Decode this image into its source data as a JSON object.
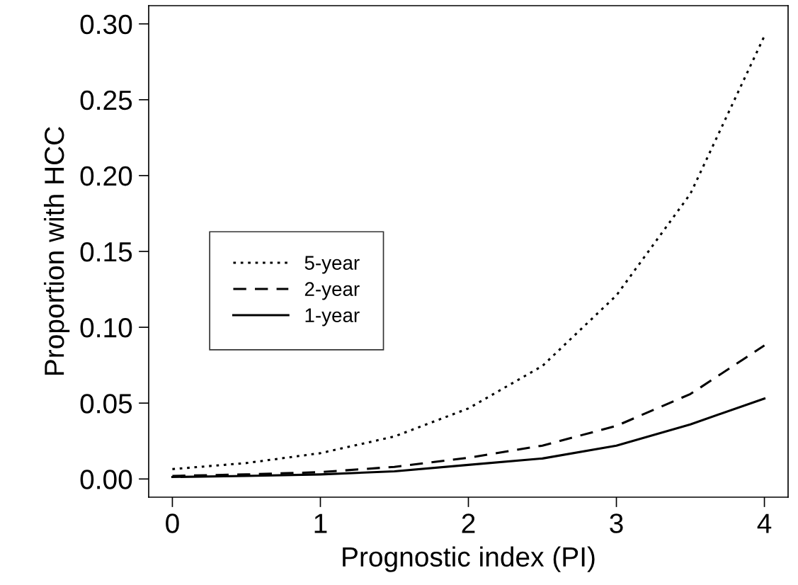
{
  "chart_data": {
    "type": "line",
    "xlabel": "Prognostic index (PI)",
    "ylabel": "Proportion with HCC",
    "x": [
      0,
      0.5,
      1,
      1.5,
      2,
      2.5,
      3,
      3.5,
      4
    ],
    "series": [
      {
        "name": "5-year",
        "color": "#000000",
        "line_style": "dotted",
        "values": [
          0.0065,
          0.0105,
          0.017,
          0.028,
          0.0465,
          0.0745,
          0.121,
          0.188,
          0.292
        ]
      },
      {
        "name": "2-year",
        "color": "#000000",
        "line_style": "dashed",
        "values": [
          0.002,
          0.003,
          0.0045,
          0.008,
          0.014,
          0.022,
          0.035,
          0.056,
          0.088
        ]
      },
      {
        "name": "1-year",
        "color": "#000000",
        "line_style": "solid",
        "values": [
          0.0013,
          0.002,
          0.003,
          0.005,
          0.0093,
          0.0135,
          0.022,
          0.036,
          0.053
        ]
      }
    ],
    "xlim": [
      -0.16,
      4.16
    ],
    "ylim": [
      -0.012,
      0.312
    ],
    "xticks": [
      0,
      1,
      2,
      3,
      4
    ],
    "yticks": [
      {
        "value": 0,
        "label": "0.00"
      },
      {
        "value": 0.05,
        "label": "0.05"
      },
      {
        "value": 0.1,
        "label": "0.10"
      },
      {
        "value": 0.15,
        "label": "0.15"
      },
      {
        "value": 0.2,
        "label": "0.20"
      },
      {
        "value": 0.25,
        "label": "0.25"
      },
      {
        "value": 0.3,
        "label": "0.30"
      }
    ],
    "grid": false,
    "legend": "left",
    "marker": "none"
  }
}
